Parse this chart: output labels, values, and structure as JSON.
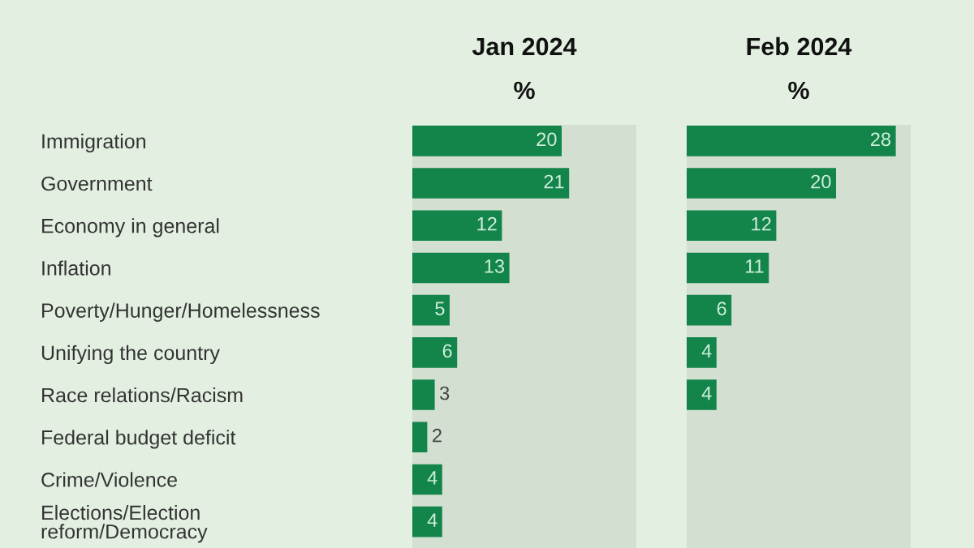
{
  "chart_data": [
    {
      "type": "bar",
      "orientation": "horizontal",
      "title": "Jan 2024",
      "subtitle": "%",
      "categories": [
        "Immigration",
        "Government",
        "Economy in general",
        "Inflation",
        "Poverty/Hunger/Homelessness",
        "Unifying the country",
        "Race relations/Racism",
        "Federal budget deficit",
        "Crime/Violence",
        "Elections/Election\nreform/Democracy"
      ],
      "values": [
        20,
        21,
        12,
        13,
        5,
        6,
        3,
        2,
        4,
        4
      ],
      "color": "#13854a",
      "xlim": [
        0,
        30
      ],
      "data_labels": true,
      "tick_labels": "y"
    },
    {
      "type": "bar",
      "orientation": "horizontal",
      "title": "Feb 2024",
      "subtitle": "%",
      "categories": [
        null,
        null,
        null,
        null,
        null,
        null,
        null,
        null,
        null,
        null
      ],
      "values": [
        28,
        20,
        12,
        11,
        6,
        4,
        4,
        null,
        null,
        null
      ],
      "color": "#13854a",
      "xlim": [
        0,
        30
      ],
      "data_labels": true,
      "tick_labels": false
    }
  ]
}
